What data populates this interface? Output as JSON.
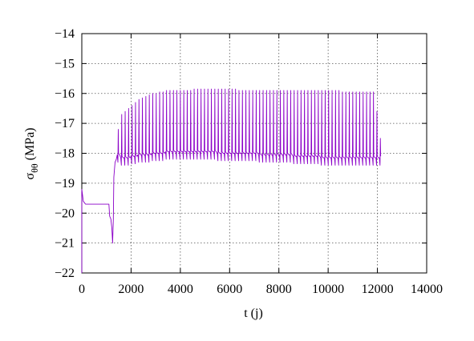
{
  "chart_data": {
    "type": "line",
    "title": "",
    "xlabel": "t (j)",
    "ylabel": {
      "symbol": "σ",
      "subscript": "θθ",
      "unit": " (MPa)"
    },
    "xlim": [
      0,
      14000
    ],
    "ylim": [
      -22,
      -14
    ],
    "xticks": [
      0,
      2000,
      4000,
      6000,
      8000,
      10000,
      12000,
      14000
    ],
    "yticks": [
      -22,
      -21,
      -20,
      -19,
      -18,
      -17,
      -16,
      -15,
      -14
    ],
    "ytick_labels": [
      "−22",
      "−21",
      "−20",
      "−19",
      "−18",
      "−17",
      "−16",
      "−15",
      "−14"
    ],
    "grid": true,
    "grid_style": "dotted",
    "legend": "none",
    "series": [
      {
        "color": "#8B00C8",
        "description_points": [
          [
            0,
            -19.2
          ],
          [
            60,
            -19.6
          ],
          [
            150,
            -19.7
          ],
          [
            1100,
            -19.7
          ],
          [
            1130,
            -20.1
          ],
          [
            1180,
            -20.2
          ],
          [
            1220,
            -20.5
          ],
          [
            1250,
            -21.0
          ],
          [
            1280,
            -20.2
          ],
          [
            1300,
            -18.8
          ],
          [
            1350,
            -18.3
          ],
          [
            1400,
            -18.2
          ],
          [
            2000,
            -18.1
          ],
          [
            3000,
            -18.05
          ],
          [
            4000,
            -18.1
          ],
          [
            5000,
            -18.1
          ],
          [
            6000,
            -18.1
          ],
          [
            7000,
            -18.15
          ],
          [
            8000,
            -18.2
          ],
          [
            9000,
            -18.25
          ],
          [
            10000,
            -18.3
          ],
          [
            11000,
            -18.3
          ],
          [
            12000,
            -18.3
          ],
          [
            12200,
            -17.5
          ]
        ],
        "peak_times": [
          1480,
          1620,
          1760,
          1900,
          2040,
          2180,
          2320,
          2460,
          2600,
          2740,
          2880,
          3020,
          3160,
          3300,
          3440,
          3580,
          3720,
          3860,
          4000,
          4140,
          4280,
          4420,
          4560,
          4700,
          4840,
          4980,
          5120,
          5260,
          5400,
          5540,
          5680,
          5820,
          5960,
          6100,
          6240,
          6380,
          6520,
          6660,
          6800,
          6940,
          7080,
          7220,
          7360,
          7500,
          7640,
          7780,
          7920,
          8060,
          8200,
          8340,
          8480,
          8620,
          8760,
          8900,
          9040,
          9180,
          9320,
          9460,
          9600,
          9740,
          9880,
          10020,
          10160,
          10300,
          10440,
          10580,
          10720,
          10860,
          11000,
          11140,
          11280,
          11420,
          11560,
          11700,
          11840,
          11980,
          12120
        ],
        "peak_values": [
          -17.2,
          -16.7,
          -16.6,
          -16.5,
          -16.4,
          -16.3,
          -16.2,
          -16.15,
          -16.1,
          -16.05,
          -16.0,
          -16.0,
          -15.95,
          -15.95,
          -15.9,
          -15.9,
          -15.9,
          -15.9,
          -15.9,
          -15.9,
          -15.9,
          -15.9,
          -15.85,
          -15.85,
          -15.85,
          -15.85,
          -15.85,
          -15.85,
          -15.85,
          -15.85,
          -15.85,
          -15.85,
          -15.85,
          -15.85,
          -15.85,
          -15.9,
          -15.9,
          -15.9,
          -15.9,
          -15.9,
          -15.9,
          -15.9,
          -15.9,
          -15.9,
          -15.9,
          -15.9,
          -15.9,
          -15.9,
          -15.9,
          -15.9,
          -15.9,
          -15.9,
          -15.9,
          -15.9,
          -15.9,
          -15.9,
          -15.9,
          -15.9,
          -15.9,
          -15.9,
          -15.9,
          -15.9,
          -15.9,
          -15.9,
          -15.9,
          -15.95,
          -15.95,
          -15.95,
          -15.95,
          -15.95,
          -15.95,
          -15.95,
          -15.95,
          -15.95,
          -15.95,
          -16.6,
          -17.5
        ],
        "trough_values": [
          -18.3,
          -18.4,
          -18.4,
          -18.4,
          -18.35,
          -18.35,
          -18.3,
          -18.3,
          -18.3,
          -18.3,
          -18.25,
          -18.25,
          -18.25,
          -18.25,
          -18.2,
          -18.2,
          -18.2,
          -18.2,
          -18.2,
          -18.2,
          -18.2,
          -18.2,
          -18.2,
          -18.2,
          -18.2,
          -18.2,
          -18.2,
          -18.2,
          -18.2,
          -18.25,
          -18.25,
          -18.25,
          -18.25,
          -18.25,
          -18.25,
          -18.25,
          -18.25,
          -18.25,
          -18.25,
          -18.25,
          -18.25,
          -18.3,
          -18.3,
          -18.3,
          -18.3,
          -18.3,
          -18.3,
          -18.3,
          -18.3,
          -18.3,
          -18.3,
          -18.35,
          -18.35,
          -18.35,
          -18.35,
          -18.35,
          -18.35,
          -18.35,
          -18.35,
          -18.4,
          -18.4,
          -18.4,
          -18.4,
          -18.4,
          -18.4,
          -18.4,
          -18.4,
          -18.4,
          -18.4,
          -18.4,
          -18.4,
          -18.4,
          -18.4,
          -18.4,
          -18.4,
          -18.4,
          -18.4
        ]
      }
    ]
  }
}
